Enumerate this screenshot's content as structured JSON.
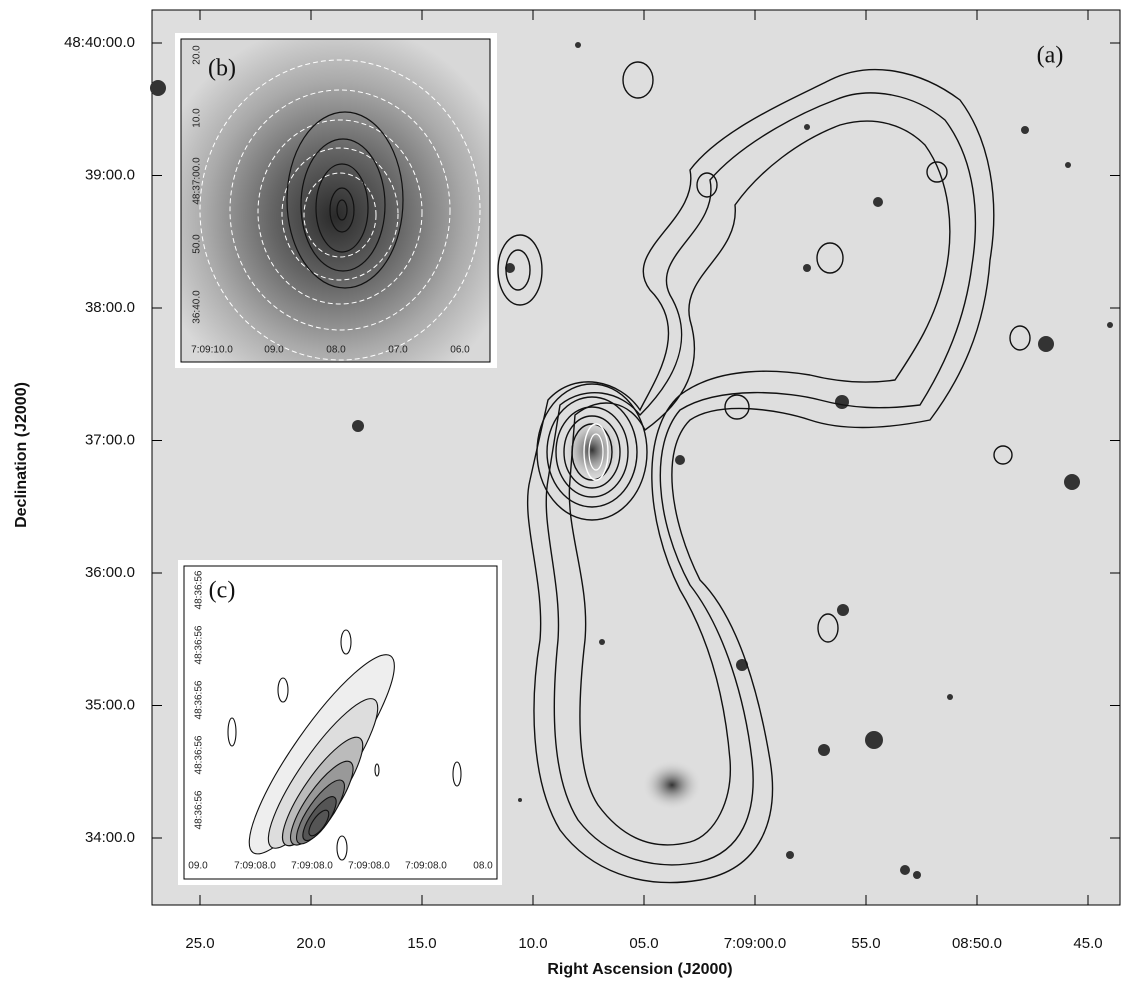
{
  "axes": {
    "x_label": "Right Ascension (J2000)",
    "y_label": "Declination (J2000)",
    "x_ticks": [
      "25.0",
      "20.0",
      "15.0",
      "10.0",
      "05.0",
      "7:09:00.0",
      "55.0",
      "08:50.0",
      "45.0"
    ],
    "y_ticks": [
      "48:40:00.0",
      "39:00.0",
      "38:00.0",
      "37:00.0",
      "36:00.0",
      "35:00.0",
      "34:00.0"
    ]
  },
  "panels": {
    "a": {
      "label": "(a)"
    },
    "b": {
      "label": "(b)",
      "x_ticks": [
        "7:09:10.0",
        "09.0",
        "08.0",
        "07.0",
        "06.0"
      ],
      "y_ticks": [
        "20.0",
        "10.0",
        "48:37:00.0",
        "50.0",
        "36:40.0"
      ]
    },
    "c": {
      "label": "(c)",
      "x_ticks": [
        "09.0",
        "7:09:08.0",
        "7:09:08.0",
        "7:09:08.0",
        "7:09:08.0",
        "08.0"
      ],
      "y_ticks": [
        "48:36:56",
        "48:36:56",
        "48:36:56",
        "48:36:56",
        "48:36:56"
      ]
    }
  }
}
